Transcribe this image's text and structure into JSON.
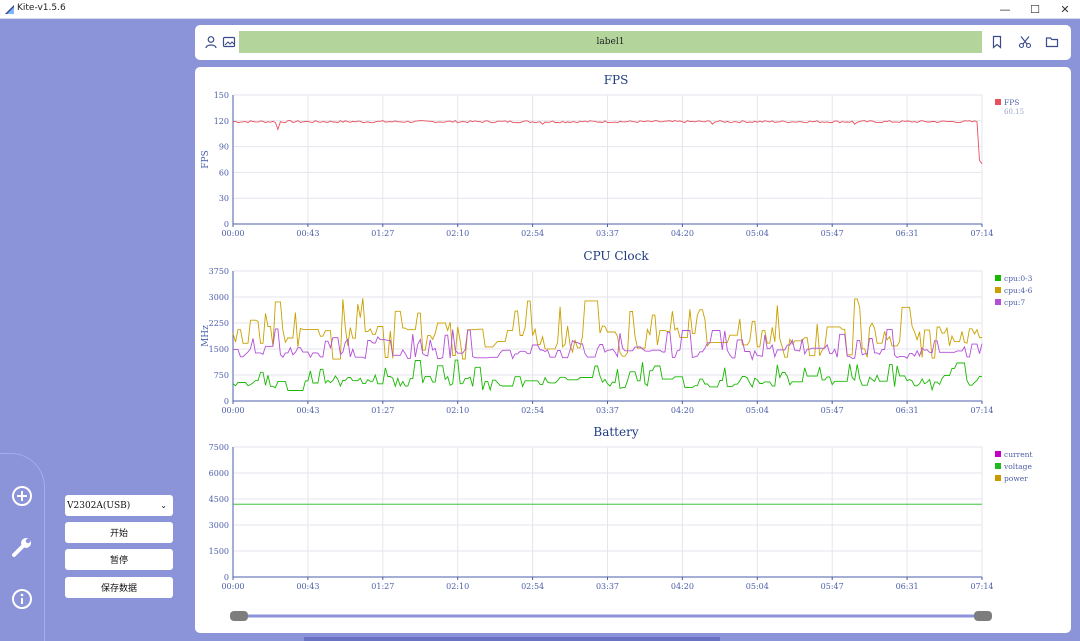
{
  "window": {
    "title": "Kite-v1.5.6",
    "minimize": "—",
    "maximize": "☐",
    "close": "✕"
  },
  "sidebar": {
    "nav_icons": [
      "add-circle-icon",
      "wrench-icon",
      "info-icon"
    ],
    "device_select": {
      "value": "V2302A(USB)"
    },
    "buttons": {
      "start": "开始",
      "pause": "暂停",
      "save": "保存数据"
    }
  },
  "toolbar": {
    "label": "label1",
    "left_icons": [
      "user-icon",
      "image-icon"
    ],
    "right_icons": [
      "bookmark-icon",
      "scissors-icon",
      "folder-icon"
    ]
  },
  "colors": {
    "background": "#8b93d9",
    "label_bar": "#b3d59c",
    "fps_line": "#e8505b",
    "cpu_0_3": "#17b800",
    "cpu_4_6": "#c9a000",
    "cpu_7": "#b34fd6",
    "current": "#c400c4",
    "voltage": "#22b822",
    "power": "#c99a00"
  },
  "chart_data": [
    {
      "type": "line",
      "title": "FPS",
      "ylabel": "FPS",
      "ylim": [
        0,
        150
      ],
      "yticks": [
        "0",
        "30",
        "60",
        "90",
        "120",
        "150"
      ],
      "x_ticks": [
        "00:00",
        "00:43",
        "01:27",
        "02:10",
        "02:54",
        "03:37",
        "04:20",
        "05:04",
        "05:47",
        "06:31",
        "07:14"
      ],
      "x_range_seconds": [
        0,
        434
      ],
      "legend_position": "right",
      "series": [
        {
          "name": "FPS",
          "color": "#e8505b",
          "legend_value": "60.15",
          "base": 119,
          "noise": 1.3,
          "spikes": [
            [
              0.06,
              110
            ],
            [
              0.415,
              116
            ],
            [
              0.64,
              116
            ],
            [
              0.83,
              116
            ],
            [
              0.985,
              99
            ],
            [
              0.997,
              74
            ],
            [
              1.0,
              70
            ]
          ]
        }
      ]
    },
    {
      "type": "line",
      "title": "CPU Clock",
      "ylabel": "MHz",
      "ylim": [
        0,
        3750
      ],
      "yticks": [
        "0",
        "750",
        "1500",
        "2250",
        "3000",
        "3750"
      ],
      "x_ticks": [
        "00:00",
        "00:43",
        "01:27",
        "02:10",
        "02:54",
        "03:37",
        "04:20",
        "05:04",
        "05:47",
        "06:31",
        "07:14"
      ],
      "x_range_seconds": [
        0,
        434
      ],
      "legend_position": "right",
      "series": [
        {
          "name": "cpu:0-3",
          "color": "#17b800",
          "min": 300,
          "max": 1200,
          "typical": 550
        },
        {
          "name": "cpu:4-6",
          "color": "#c9a000",
          "min": 1200,
          "max": 3000,
          "typical": 1800
        },
        {
          "name": "cpu:7",
          "color": "#b34fd6",
          "min": 1200,
          "max": 2100,
          "typical": 1350
        }
      ]
    },
    {
      "type": "line",
      "title": "Battery",
      "ylim": [
        0,
        7500
      ],
      "yticks": [
        "0",
        "1500",
        "3000",
        "4500",
        "6000",
        "7500"
      ],
      "x_ticks": [
        "00:00",
        "00:43",
        "01:27",
        "02:10",
        "02:54",
        "03:37",
        "04:20",
        "05:04",
        "05:47",
        "06:31",
        "07:14"
      ],
      "x_range_seconds": [
        0,
        434
      ],
      "legend_position": "right",
      "series": [
        {
          "name": "current",
          "color": "#c400c4",
          "values": []
        },
        {
          "name": "voltage",
          "color": "#22b822",
          "values": [
            4200,
            4200
          ]
        },
        {
          "name": "power",
          "color": "#c99a00",
          "values": []
        }
      ]
    }
  ],
  "timeline_slider": {
    "start": 0.0,
    "end": 1.0
  }
}
